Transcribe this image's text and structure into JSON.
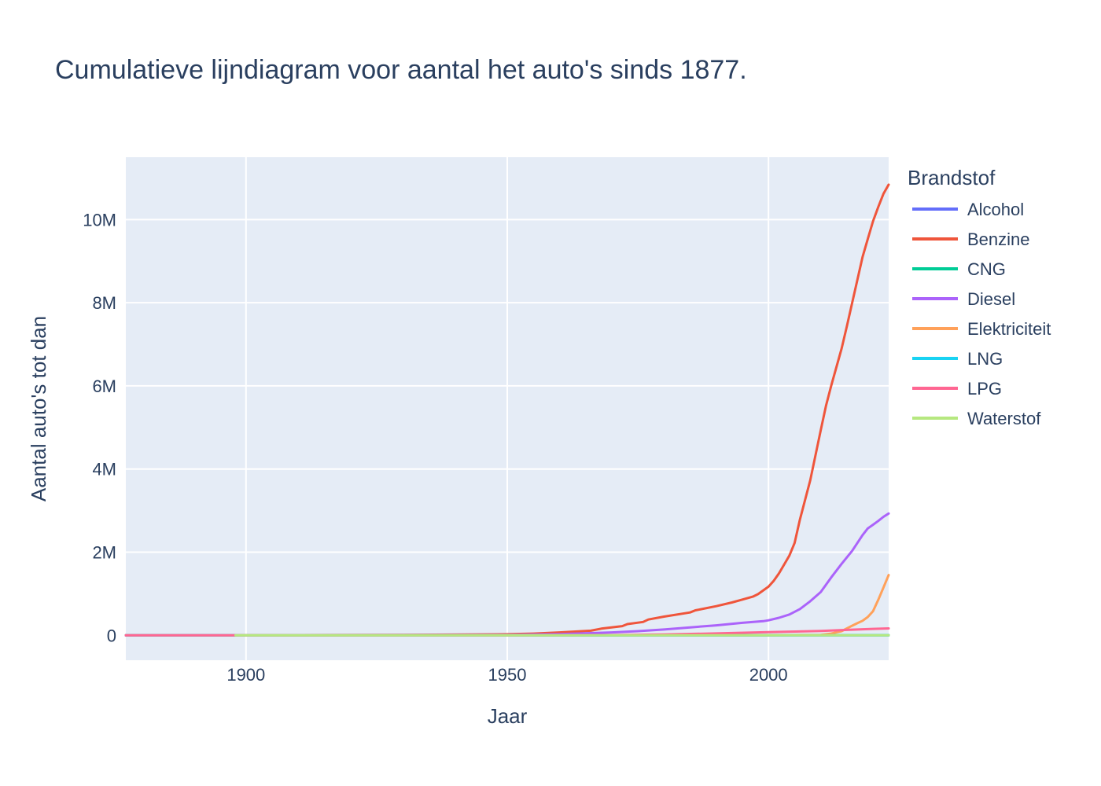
{
  "chart_data": {
    "type": "line",
    "title": "Cumulatieve lijndiagram voor aantal het auto's sinds 1877.",
    "xlabel": "Jaar",
    "ylabel": "Aantal auto's tot dan",
    "xlim": [
      1877,
      2023
    ],
    "ylim": [
      -600000,
      11500000
    ],
    "x_ticks": [
      1900,
      1950,
      2000
    ],
    "x_tick_labels": [
      "1900",
      "1950",
      "2000"
    ],
    "y_ticks": [
      0,
      2000000,
      4000000,
      6000000,
      8000000,
      10000000
    ],
    "y_tick_labels": [
      "0",
      "2M",
      "4M",
      "6M",
      "8M",
      "10M"
    ],
    "grid": true,
    "plot_background": "#e5ecf6",
    "legend": {
      "title": "Brandstof",
      "placement": "right"
    },
    "series": [
      {
        "name": "Alcohol",
        "color": "#636efa",
        "x": [
          1877,
          1950,
          2000,
          2023
        ],
        "y": [
          0,
          0,
          0,
          0
        ]
      },
      {
        "name": "Benzine",
        "color": "#EF553B",
        "x": [
          1877,
          1900,
          1930,
          1950,
          1955,
          1960,
          1966,
          1968,
          1972,
          1973,
          1976,
          1977,
          1980,
          1985,
          1986,
          1990,
          1993,
          1995,
          1997,
          1998,
          2000,
          2001,
          2002,
          2003,
          2004,
          2005,
          2006,
          2008,
          2010,
          2011,
          2012,
          2014,
          2015,
          2016,
          2018,
          2019,
          2020,
          2021,
          2022,
          2023
        ],
        "y": [
          0,
          3000,
          10000,
          25000,
          40000,
          70000,
          110000,
          160000,
          220000,
          270000,
          320000,
          380000,
          450000,
          550000,
          600000,
          700000,
          790000,
          860000,
          930000,
          990000,
          1170000,
          1310000,
          1490000,
          1700000,
          1920000,
          2220000,
          2780000,
          3730000,
          4930000,
          5520000,
          6000000,
          6900000,
          7430000,
          7990000,
          9100000,
          9530000,
          9960000,
          10300000,
          10620000,
          10840000
        ]
      },
      {
        "name": "CNG",
        "color": "#00cc96",
        "x": [
          1877,
          1950,
          2000,
          2023
        ],
        "y": [
          0,
          0,
          1000,
          4000
        ]
      },
      {
        "name": "Diesel",
        "color": "#ab63fa",
        "x": [
          1877,
          1950,
          1960,
          1970,
          1975,
          1980,
          1985,
          1990,
          1995,
          1999,
          2000,
          2002,
          2004,
          2006,
          2008,
          2010,
          2012,
          2014,
          2016,
          2018,
          2019,
          2020,
          2021,
          2022,
          2023
        ],
        "y": [
          0,
          10000,
          30000,
          70000,
          100000,
          140000,
          190000,
          240000,
          300000,
          340000,
          360000,
          420000,
          500000,
          630000,
          820000,
          1040000,
          1390000,
          1720000,
          2030000,
          2410000,
          2570000,
          2660000,
          2750000,
          2850000,
          2930000
        ]
      },
      {
        "name": "Elektriciteit",
        "color": "#FFA15A",
        "x": [
          1877,
          1898,
          1950,
          2000,
          2010,
          2012,
          2014,
          2016,
          2017,
          2018,
          2019,
          2020,
          2021,
          2022,
          2023
        ],
        "y": [
          0,
          0,
          0,
          1000,
          10000,
          40000,
          100000,
          230000,
          290000,
          350000,
          440000,
          580000,
          850000,
          1150000,
          1450000
        ]
      },
      {
        "name": "LNG",
        "color": "#19d3f3",
        "x": [
          1877,
          1950,
          2000,
          2023
        ],
        "y": [
          0,
          0,
          0,
          200
        ]
      },
      {
        "name": "LPG",
        "color": "#FF6692",
        "x": [
          1877,
          1950,
          1970,
          1980,
          1990,
          2000,
          2010,
          2015,
          2020,
          2023
        ],
        "y": [
          0,
          0,
          5000,
          20000,
          45000,
          75000,
          105000,
          130000,
          155000,
          165000
        ]
      },
      {
        "name": "Waterstof",
        "color": "#B6E880",
        "x": [
          1898,
          1950,
          2000,
          2023
        ],
        "y": [
          0,
          0,
          0,
          1000
        ]
      }
    ]
  }
}
